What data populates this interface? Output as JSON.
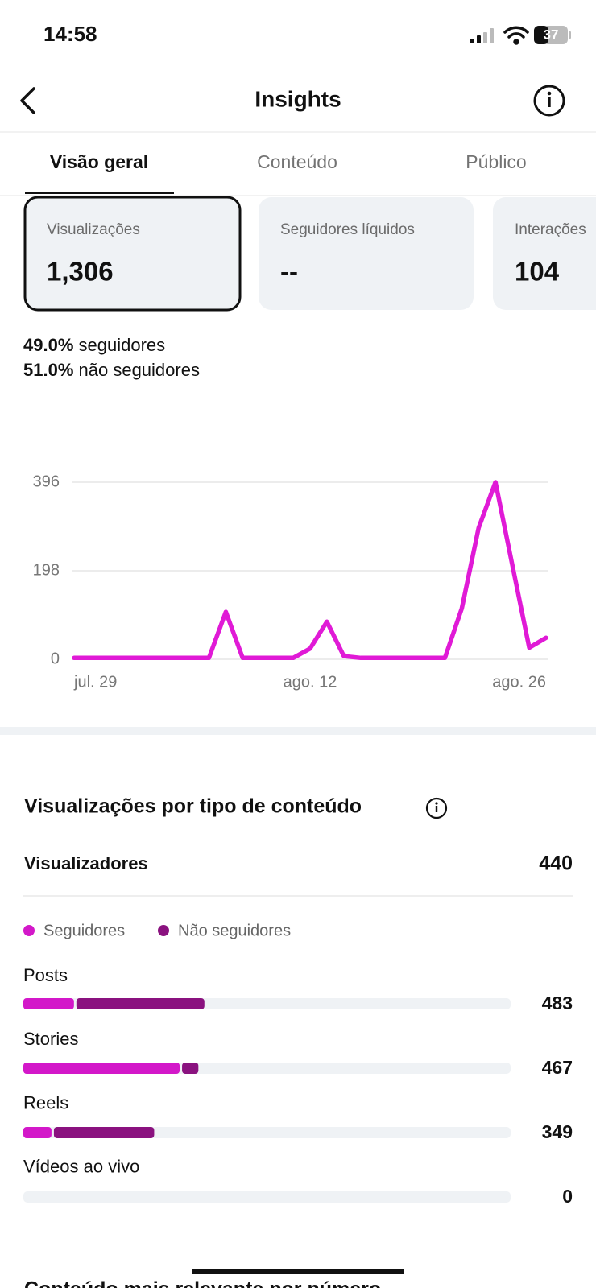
{
  "status": {
    "time": "14:58",
    "battery": "37"
  },
  "header": {
    "title": "Insights"
  },
  "tabs": [
    "Visão geral",
    "Conteúdo",
    "Público"
  ],
  "cards": [
    {
      "label": "Visualizações",
      "value": "1,306"
    },
    {
      "label": "Seguidores líquidos",
      "value": "--"
    },
    {
      "label": "Interações",
      "value": "104"
    }
  ],
  "audience": [
    {
      "percent": "49.0%",
      "label": "seguidores"
    },
    {
      "percent": "51.0%",
      "label": "não seguidores"
    }
  ],
  "chart_data": [
    {
      "type": "line",
      "categories": [
        "jul. 29",
        null,
        null,
        null,
        null,
        null,
        null,
        null,
        null,
        null,
        null,
        null,
        null,
        null,
        "ago. 12",
        null,
        null,
        null,
        null,
        null,
        null,
        null,
        null,
        null,
        null,
        null,
        null,
        null,
        "ago. 26"
      ],
      "values": [
        3,
        3,
        3,
        3,
        3,
        3,
        3,
        3,
        3,
        106,
        3,
        3,
        3,
        3,
        24,
        84,
        7,
        3,
        3,
        3,
        3,
        3,
        3,
        114,
        294,
        396,
        211,
        26,
        48
      ],
      "color": "#e01ad6",
      "ylim": [
        0,
        396
      ],
      "yticks": [
        0,
        198,
        396
      ],
      "grid": true
    },
    {
      "type": "stacked_bar",
      "orientation": "horizontal",
      "categories": [
        "Posts",
        "Stories",
        "Reels",
        "Vídeos ao vivo"
      ],
      "series": [
        {
          "name": "Seguidores",
          "color": "#d318c9",
          "values": [
            135,
            417,
            75,
            0
          ]
        },
        {
          "name": "Não seguidores",
          "color": "#8a127f",
          "values": [
            348,
            50,
            274,
            0
          ]
        }
      ],
      "totals": [
        483,
        467,
        349,
        0
      ],
      "xlim": [
        0,
        1300
      ]
    }
  ],
  "section": {
    "title": "Visualizações por tipo de conteúdo",
    "viewers_label": "Visualizadores",
    "viewers_value": "440"
  },
  "next_section": {
    "title": "Conteúdo mais relevante por número"
  }
}
